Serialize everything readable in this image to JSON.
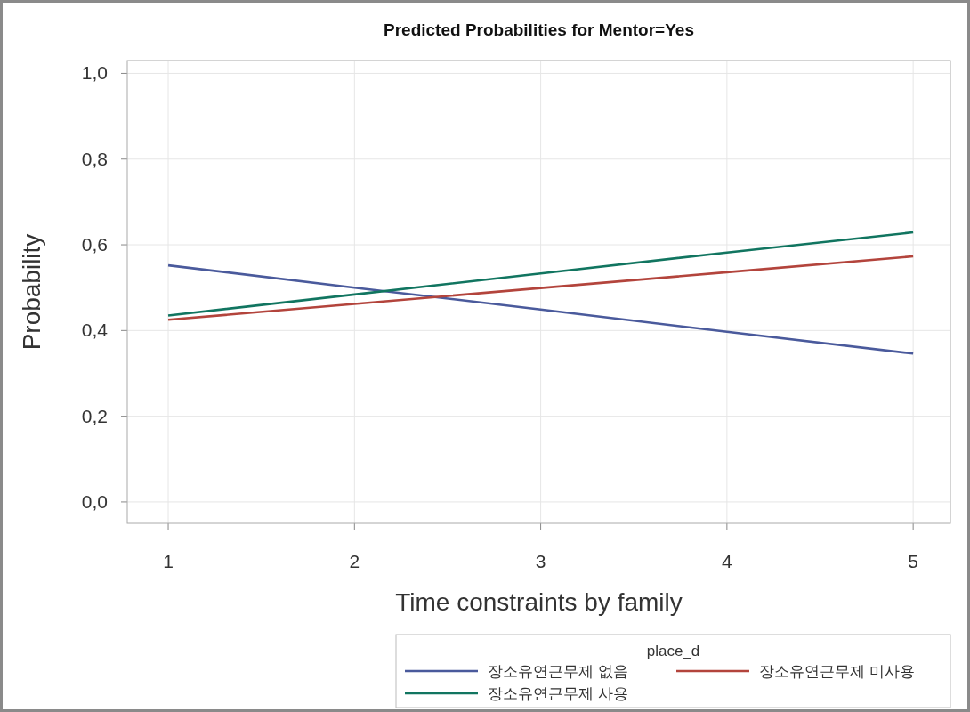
{
  "chart_data": {
    "type": "line",
    "title": "Predicted Probabilities for Mentor=Yes",
    "xlabel": "Time constraints by family",
    "ylabel": "Probability",
    "legend_title": "place_d",
    "x": [
      1,
      2,
      3,
      4,
      5
    ],
    "series": [
      {
        "name": "장소유연근무제 없음",
        "color": "#4a5a9c",
        "values": [
          0.552,
          0.5,
          0.449,
          0.397,
          0.346
        ]
      },
      {
        "name": "장소유연근무제 미사용",
        "color": "#b3443c",
        "values": [
          0.425,
          0.462,
          0.499,
          0.536,
          0.573
        ]
      },
      {
        "name": "장소유연근무제 사용",
        "color": "#117560",
        "values": [
          0.435,
          0.484,
          0.533,
          0.582,
          0.629
        ]
      }
    ],
    "xlim": [
      0.78,
      5.2
    ],
    "ylim": [
      -0.05,
      1.03
    ],
    "xticks": [
      1,
      2,
      3,
      4,
      5
    ],
    "yticks": [
      {
        "value": 0,
        "label": "0,0"
      },
      {
        "value": 0.2,
        "label": "0,2"
      },
      {
        "value": 0.4,
        "label": "0,4"
      },
      {
        "value": 0.6,
        "label": "0,6"
      },
      {
        "value": 0.8,
        "label": "0,8"
      },
      {
        "value": 1,
        "label": "1,0"
      }
    ],
    "grid": true,
    "legend": "bottom right",
    "marker": "none",
    "line_style": "solid"
  }
}
